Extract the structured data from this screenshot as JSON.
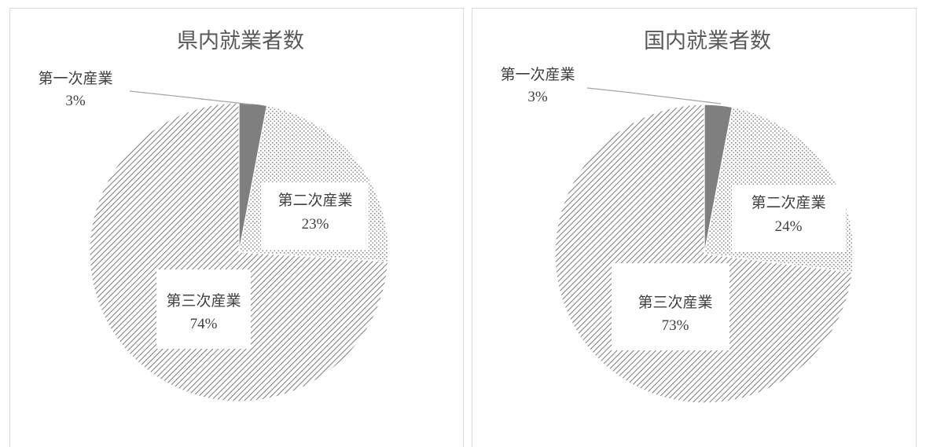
{
  "chart_data": [
    {
      "type": "pie",
      "title": "県内就業者数",
      "slices": [
        {
          "label": "第一次産業",
          "value": 3,
          "display": "3%",
          "fill": "#7f7f7f"
        },
        {
          "label": "第二次産業",
          "value": 23,
          "display": "23%",
          "fill": "dots"
        },
        {
          "label": "第三次産業",
          "value": 74,
          "display": "74%",
          "fill": "hatch"
        }
      ]
    },
    {
      "type": "pie",
      "title": "国内就業者数",
      "slices": [
        {
          "label": "第一次産業",
          "value": 3,
          "display": "3%",
          "fill": "#7f7f7f"
        },
        {
          "label": "第二次産業",
          "value": 24,
          "display": "24%",
          "fill": "dots"
        },
        {
          "label": "第三次産業",
          "value": 73,
          "display": "73%",
          "fill": "hatch"
        }
      ]
    }
  ]
}
